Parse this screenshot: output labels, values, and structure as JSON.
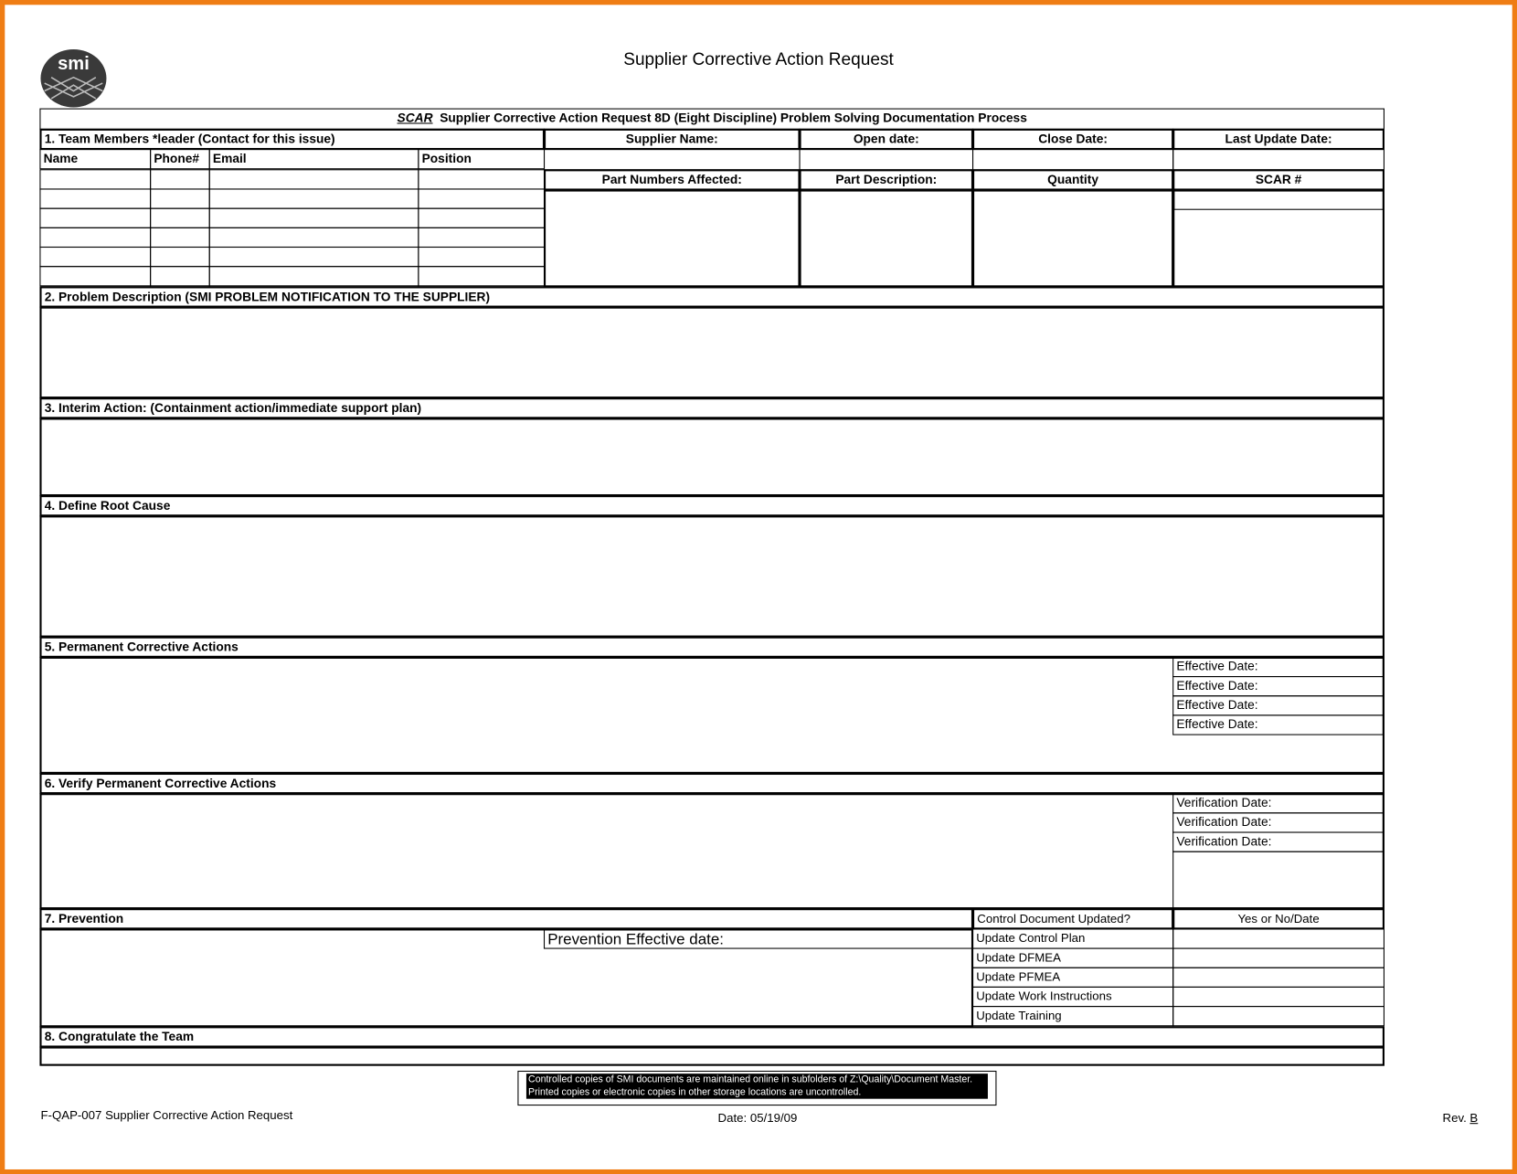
{
  "title": "Supplier Corrective Action Request",
  "logo_text": "smi",
  "header": {
    "scar": "SCAR",
    "rest": "Supplier Corrective Action Request 8D (Eight Discipline) Problem Solving Documentation Process"
  },
  "team": {
    "label": "1. Team Members *leader (Contact for this issue)",
    "columns": [
      "Name",
      "Phone#",
      "Email",
      "Position"
    ]
  },
  "info": {
    "supplier_name": "Supplier Name:",
    "open_date": "Open date:",
    "close_date": "Close Date:",
    "last_update": "Last Update Date:",
    "part_numbers": "Part Numbers Affected:",
    "part_description": "Part Description:",
    "quantity": "Quantity",
    "scar_no": "SCAR #"
  },
  "sections": {
    "s2": "2. Problem Description (SMI PROBLEM NOTIFICATION TO THE SUPPLIER)",
    "s3": "3. Interim Action: (Containment action/immediate support plan)",
    "s4": "4. Define Root Cause",
    "s5": "5. Permanent Corrective Actions",
    "s6": "6. Verify Permanent Corrective Actions",
    "s7": "7. Prevention",
    "s8": "8. Congratulate the Team"
  },
  "effective_dates": [
    "Effective Date:",
    "Effective Date:",
    "Effective Date:",
    "Effective Date:"
  ],
  "verification_dates": [
    "Verification Date:",
    "Verification Date:",
    "Verification Date:"
  ],
  "prevention": {
    "effective_date": "Prevention Effective date:",
    "control_doc": "Control Document Updated?",
    "yes_no": "Yes or No/Date",
    "items": [
      "Update Control Plan",
      "Update DFMEA",
      "Update PFMEA",
      "Update Work Instructions",
      "Update Training"
    ]
  },
  "footer": {
    "notice": "Controlled copies of SMI documents are maintained online in subfolders of Z:\\Quality\\Document Master.  Printed copies or electronic copies in other storage locations are uncontrolled.",
    "form_id": "F-QAP-007 Supplier Corrective Action Request",
    "date": "Date: 05/19/09",
    "rev_prefix": "Rev. ",
    "rev": "B"
  }
}
